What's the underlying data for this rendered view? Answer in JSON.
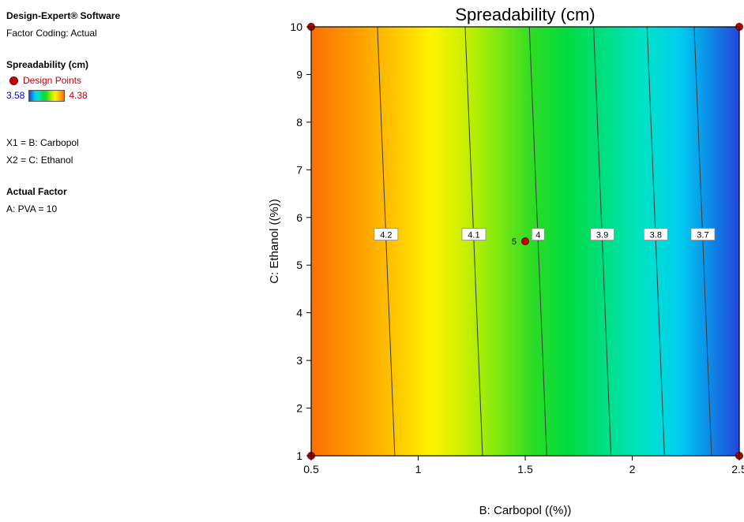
{
  "sidebar": {
    "software_title": "Design-Expert® Software",
    "factor_coding": "Factor Coding: Actual",
    "response_name": "Spreadability (cm)",
    "design_points_label": "Design Points",
    "scale_min": "3.58",
    "scale_max": "4.38",
    "x1_line": "X1 = B: Carbopol",
    "x2_line": "X2 = C: Ethanol",
    "actual_factor_heading": "Actual Factor",
    "actual_factor_value": "A: PVA = 10"
  },
  "colors": {
    "design_point": "#c40000",
    "design_point_edge": "#6b0000",
    "contour_line": "#3a3a3a",
    "contour_label_border": "#8a8a8a",
    "scale_min_text": "#0000d8",
    "scale_max_text": "#c00000"
  },
  "chart_data": {
    "type": "contour",
    "title": "Spreadability (cm)",
    "xlabel": "B: Carbopol  ((%))",
    "ylabel": "C: Ethanol  ((%))",
    "xlim": [
      0.5,
      2.5
    ],
    "ylim": [
      1,
      10
    ],
    "x_ticks": [
      "0.5",
      "1",
      "1.5",
      "2",
      "2.5"
    ],
    "y_ticks": [
      "1",
      "2",
      "3",
      "4",
      "5",
      "6",
      "7",
      "8",
      "9",
      "10"
    ],
    "grid": false,
    "legend_position": "left-panel",
    "color_scale": {
      "min": 3.58,
      "max": 4.38,
      "low_color": "blue",
      "high_color": "orange-red"
    },
    "contour_label_y": 5.64,
    "contours": [
      {
        "label": "4.2",
        "x": 0.85
      },
      {
        "label": "4.1",
        "x": 1.26
      },
      {
        "label": "4",
        "x": 1.56
      },
      {
        "label": "3.9",
        "x": 1.86
      },
      {
        "label": "3.8",
        "x": 2.11
      },
      {
        "label": "3.7",
        "x": 2.33
      }
    ],
    "design_points": [
      {
        "x": 0.5,
        "y": 10
      },
      {
        "x": 2.5,
        "y": 10
      },
      {
        "x": 1.5,
        "y": 5.5,
        "count": "5"
      },
      {
        "x": 0.5,
        "y": 1
      },
      {
        "x": 2.5,
        "y": 1
      }
    ],
    "gradient": [
      [
        0.0,
        "#fa7005"
      ],
      [
        0.1,
        "#fe9a00"
      ],
      [
        0.2,
        "#ffc800"
      ],
      [
        0.28,
        "#fff200"
      ],
      [
        0.36,
        "#c8f000"
      ],
      [
        0.44,
        "#7ce810"
      ],
      [
        0.52,
        "#2adc25"
      ],
      [
        0.6,
        "#00dc40"
      ],
      [
        0.7,
        "#00e08c"
      ],
      [
        0.78,
        "#00e2c8"
      ],
      [
        0.86,
        "#00cff0"
      ],
      [
        0.93,
        "#0d8be8"
      ],
      [
        1.0,
        "#2346d8"
      ]
    ]
  }
}
